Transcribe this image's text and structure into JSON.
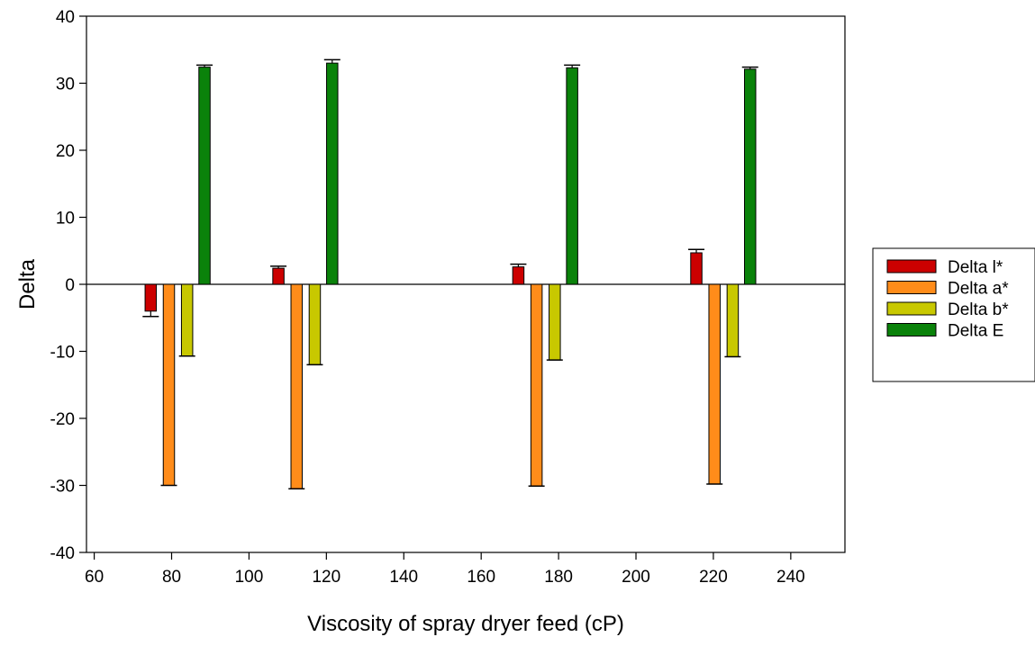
{
  "chart_data": {
    "type": "bar",
    "title": "",
    "xlabel": "Viscosity of spray dryer feed (cP)",
    "ylabel": "Delta",
    "xlim": [
      58,
      254
    ],
    "ylim": [
      -40,
      40
    ],
    "xticks": [
      60,
      80,
      100,
      120,
      140,
      160,
      180,
      200,
      220,
      240
    ],
    "yticks": [
      -40,
      -30,
      -20,
      -10,
      0,
      10,
      20,
      30,
      40
    ],
    "groups": [
      77,
      110,
      172,
      218
    ],
    "legend_position": "right",
    "grid": false,
    "series": [
      {
        "name": "Delta l*",
        "color": "#cc0000",
        "offset": -2.4,
        "values": [
          -4.0,
          2.4,
          2.6,
          4.7
        ],
        "errors": [
          0.8,
          0.3,
          0.4,
          0.5
        ]
      },
      {
        "name": "Delta a*",
        "color": "#ff8c1a",
        "offset": 2.3,
        "values": [
          -30.0,
          -30.5,
          -30.1,
          -29.8
        ],
        "errors": [
          0,
          0,
          0,
          0
        ]
      },
      {
        "name": "Delta b*",
        "color": "#c8c800",
        "offset": 7.0,
        "values": [
          -10.7,
          -12.0,
          -11.3,
          -10.8
        ],
        "errors": [
          0,
          0,
          0,
          0
        ]
      },
      {
        "name": "Delta E",
        "color": "#0a820a",
        "offset": 11.5,
        "values": [
          32.4,
          33.0,
          32.3,
          32.1
        ],
        "errors": [
          0.3,
          0.5,
          0.4,
          0.3
        ]
      }
    ]
  }
}
